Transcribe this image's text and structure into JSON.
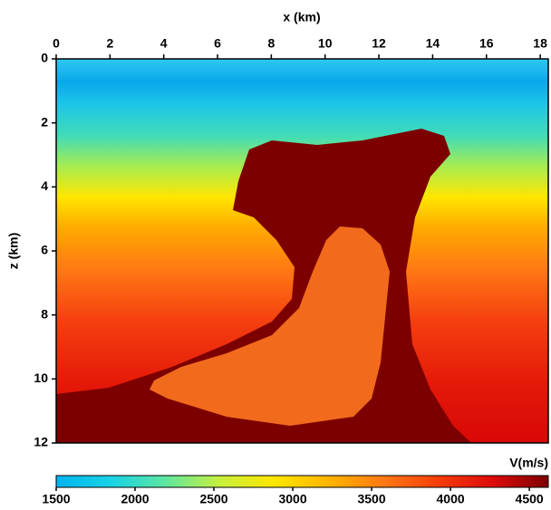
{
  "chart_data": {
    "type": "heatmap",
    "x_label": "x (km)",
    "y_label": "z (km)",
    "xlim": [
      0,
      18.3
    ],
    "xticks": [
      0,
      2,
      4,
      6,
      8,
      10,
      12,
      14,
      16,
      18
    ],
    "ylim": [
      0,
      12
    ],
    "yticks": [
      0,
      2,
      4,
      6,
      8,
      10,
      12
    ],
    "colorbar": {
      "label": "V(m/s)",
      "lim": [
        1500,
        4620
      ],
      "ticks": [
        1500,
        2000,
        2500,
        3000,
        3500,
        4000,
        4500
      ],
      "colormap": [
        "#00b4f0",
        "#18d2e6",
        "#5ee6a0",
        "#c8f03c",
        "#ffe600",
        "#ffb400",
        "#ff7814",
        "#f53c0a",
        "#dc0a0a",
        "#7d0000"
      ]
    }
  }
}
